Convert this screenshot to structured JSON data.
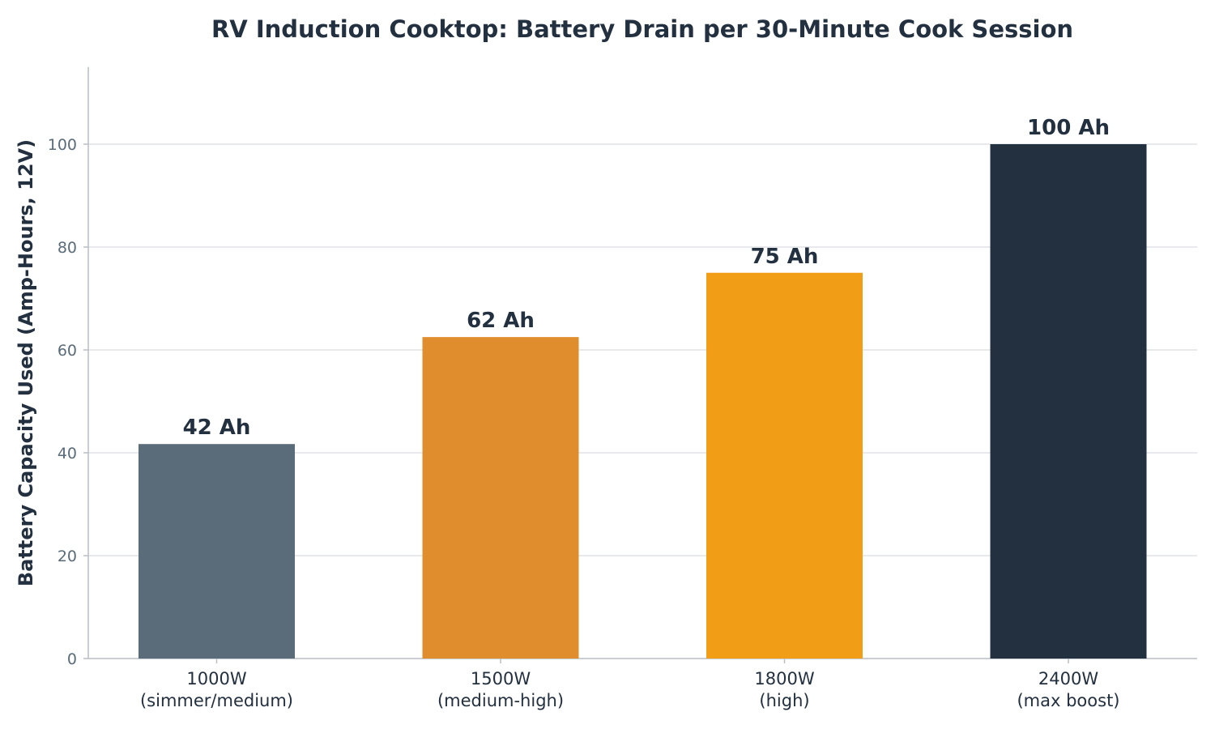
{
  "chart_data": {
    "type": "bar",
    "title": "RV Induction Cooktop: Battery Drain per 30-Minute Cook Session",
    "xlabel": "",
    "ylabel": "Battery Capacity Used (Amp-Hours, 12V)",
    "categories": [
      [
        "1000W",
        "(simmer/medium)"
      ],
      [
        "1500W",
        "(medium-high)"
      ],
      [
        "1800W",
        "(high)"
      ],
      [
        "2400W",
        "(max boost)"
      ]
    ],
    "values": [
      41.7,
      62.5,
      75,
      100
    ],
    "data_labels": [
      "42 Ah",
      "62 Ah",
      "75 Ah",
      "100 Ah"
    ],
    "colors": [
      "#5a6b7a",
      "#e08e2d",
      "#f19e16",
      "#233040"
    ],
    "ylim": [
      0,
      115
    ],
    "yticks": [
      0,
      20,
      40,
      60,
      80,
      100
    ],
    "grid": "horizontal",
    "legend": "none"
  },
  "style": {
    "text_color": "#233040",
    "tick_color": "#5a6b7a",
    "grid_color": "#dfe2e5",
    "axis_color": "#b9bec4"
  }
}
